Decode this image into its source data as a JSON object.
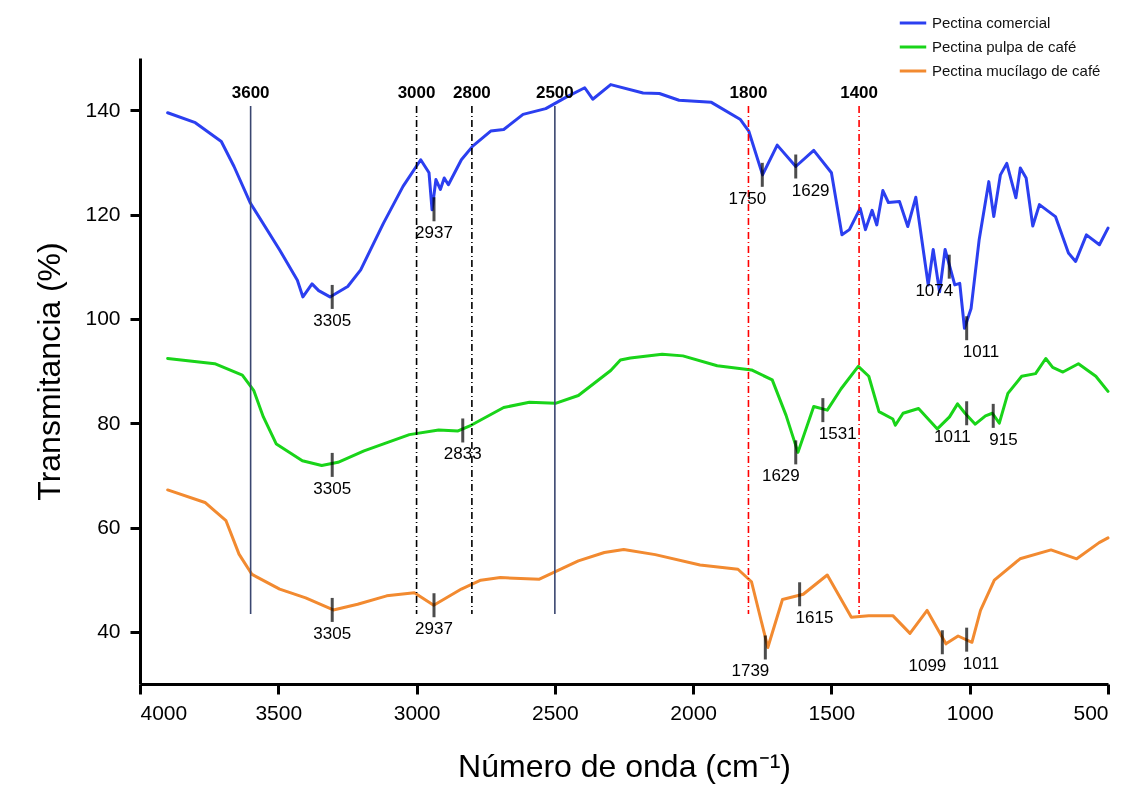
{
  "chart_data": {
    "type": "line",
    "xlabel": "Número de onda (cm⁻¹)",
    "ylabel": "Transmitancia (%)",
    "xlim": [
      4000,
      500
    ],
    "ylim": [
      30,
      150
    ],
    "xticks": [
      4000,
      3500,
      3000,
      2500,
      2000,
      1500,
      1000,
      500
    ],
    "yticks": [
      40,
      60,
      80,
      100,
      120,
      140
    ],
    "legend": "top right",
    "series": [
      {
        "name": "Pectina comercial",
        "color": "#2b3ff0",
        "x": [
          3900,
          3800,
          3706,
          3660,
          3601,
          3495,
          3431,
          3411,
          3378,
          3354,
          3313,
          3249,
          3202,
          3120,
          3049,
          2985,
          2955,
          2944,
          2930,
          2914,
          2900,
          2885,
          2838,
          2797,
          2732,
          2685,
          2615,
          2533,
          2462,
          2392,
          2363,
          2298,
          2181,
          2122,
          2051,
          1934,
          1829,
          1799,
          1749,
          1696,
          1629,
          1564,
          1500,
          1462,
          1435,
          1396,
          1377,
          1353,
          1336,
          1314,
          1294,
          1254,
          1224,
          1195,
          1150,
          1132,
          1109,
          1089,
          1054,
          1036,
          1019,
          995,
          966,
          931,
          913,
          889,
          866,
          833,
          817,
          796,
          772,
          748,
          690,
          643,
          617,
          578,
          531,
          500
        ],
        "values": [
          139.5,
          137.6,
          134.0,
          129.2,
          122.2,
          113.2,
          107.4,
          104.2,
          106.7,
          105.4,
          104.2,
          106.2,
          109.4,
          118.3,
          125.4,
          130.5,
          128.0,
          120.9,
          126.7,
          124.8,
          127.0,
          125.7,
          130.5,
          133.1,
          136.0,
          136.3,
          139.2,
          140.3,
          142.4,
          144.3,
          142.1,
          144.9,
          143.3,
          143.2,
          141.9,
          141.5,
          138.2,
          136.0,
          127.6,
          133.3,
          129.2,
          132.3,
          128.0,
          116.1,
          117.1,
          121.2,
          117.1,
          120.8,
          118.0,
          124.6,
          122.3,
          122.5,
          117.7,
          123.3,
          106.5,
          113.3,
          105.2,
          113.3,
          106.5,
          106.8,
          98.2,
          102.0,
          115.1,
          126.3,
          119.6,
          127.6,
          129.8,
          123.2,
          128.9,
          127.0,
          117.8,
          121.9,
          119.6,
          112.6,
          111.0,
          116.1,
          114.2,
          117.4
        ]
      },
      {
        "name": "Pectina pulpa de café",
        "color": "#19d419",
        "x": [
          3900,
          3730,
          3630,
          3589,
          3554,
          3507,
          3413,
          3343,
          3284,
          3190,
          3026,
          2920,
          2850,
          2803,
          2685,
          2592,
          2498,
          2415,
          2298,
          2263,
          2227,
          2112,
          2037,
          1913,
          1789,
          1714,
          1664,
          1621,
          1564,
          1515,
          1465,
          1403,
          1365,
          1328,
          1278,
          1269,
          1241,
          1185,
          1117,
          1073,
          1044,
          1017,
          980,
          943,
          918,
          893,
          862,
          812,
          762,
          725,
          700,
          663,
          607,
          544,
          500
        ],
        "values": [
          92.4,
          91.4,
          89.2,
          86.3,
          81.2,
          76.0,
          72.8,
          71.9,
          72.5,
          74.7,
          77.8,
          78.7,
          78.5,
          79.6,
          83.0,
          84.0,
          83.8,
          85.3,
          90.1,
          92.1,
          92.5,
          93.2,
          92.9,
          91.0,
          90.2,
          88.3,
          81.5,
          74.4,
          83.2,
          82.5,
          86.6,
          90.9,
          89.0,
          82.2,
          80.8,
          79.6,
          81.9,
          82.8,
          78.9,
          81.2,
          83.7,
          81.9,
          79.8,
          81.4,
          81.9,
          80.0,
          85.7,
          89.0,
          89.5,
          92.4,
          90.7,
          89.8,
          91.4,
          89.0,
          86.1
        ]
      },
      {
        "name": "Pectina mucílago de café",
        "color": "#f28a30",
        "x": [
          3900,
          3765,
          3689,
          3642,
          3595,
          3495,
          3401,
          3301,
          3213,
          3108,
          3008,
          2938,
          2838,
          2768,
          2697,
          2556,
          2415,
          2321,
          2251,
          2137,
          1975,
          1838,
          1789,
          1730,
          1677,
          1602,
          1515,
          1428,
          1365,
          1278,
          1216,
          1154,
          1086,
          1042,
          992,
          961,
          911,
          818,
          706,
          613,
          532,
          500
        ],
        "values": [
          67.2,
          64.8,
          61.3,
          54.9,
          51.0,
          48.2,
          46.5,
          44.2,
          45.3,
          46.9,
          47.5,
          45.1,
          48.2,
          49.9,
          50.4,
          50.1,
          53.6,
          55.2,
          55.8,
          54.8,
          52.8,
          52.0,
          49.6,
          37.0,
          46.2,
          47.2,
          50.9,
          42.8,
          43.1,
          43.1,
          39.7,
          44.1,
          37.7,
          39.2,
          38.0,
          44.1,
          49.9,
          54.0,
          55.7,
          54.0,
          57.1,
          58.0
        ]
      }
    ],
    "ref_lines": [
      {
        "axis": "x",
        "value": 3600,
        "label": "3600",
        "color": "#3a4670",
        "line_style": "solid"
      },
      {
        "axis": "x",
        "value": 3000,
        "label": "3000",
        "color": "#000000",
        "line_style": "dashed"
      },
      {
        "axis": "x",
        "value": 2800,
        "label": "2800",
        "color": "#000000",
        "line_style": "dashed"
      },
      {
        "axis": "x",
        "value": 2500,
        "label": "2500",
        "color": "#3a4670",
        "line_style": "solid"
      },
      {
        "axis": "x",
        "value": 1800,
        "label": "1800",
        "color": "#ff0000",
        "line_style": "dashed"
      },
      {
        "axis": "x",
        "value": 1400,
        "label": "1400",
        "color": "#ff0000",
        "line_style": "dashed"
      }
    ],
    "annotations": [
      {
        "text": "3305",
        "x": 3305,
        "y": 104.2
      },
      {
        "text": "2937",
        "x": 2937,
        "y": 121
      },
      {
        "text": "1750",
        "x": 1750,
        "y": 127.6
      },
      {
        "text": "1629",
        "x": 1629,
        "y": 129.2
      },
      {
        "text": "1074",
        "x": 1074,
        "y": 110
      },
      {
        "text": "1011",
        "x": 1011,
        "y": 98.2
      },
      {
        "text": "3305",
        "x": 3305,
        "y": 72
      },
      {
        "text": "2833",
        "x": 2833,
        "y": 78.6
      },
      {
        "text": "1629",
        "x": 1629,
        "y": 74.4
      },
      {
        "text": "1531",
        "x": 1531,
        "y": 82.5
      },
      {
        "text": "1011",
        "x": 1011,
        "y": 81.9
      },
      {
        "text": "915",
        "x": 915,
        "y": 81.4
      },
      {
        "text": "3305",
        "x": 3305,
        "y": 44.2
      },
      {
        "text": "2937",
        "x": 2937,
        "y": 45.1
      },
      {
        "text": "1739",
        "x": 1739,
        "y": 37
      },
      {
        "text": "1615",
        "x": 1615,
        "y": 47.2
      },
      {
        "text": "1099",
        "x": 1099,
        "y": 38
      },
      {
        "text": "1011",
        "x": 1011,
        "y": 38.5
      }
    ]
  }
}
